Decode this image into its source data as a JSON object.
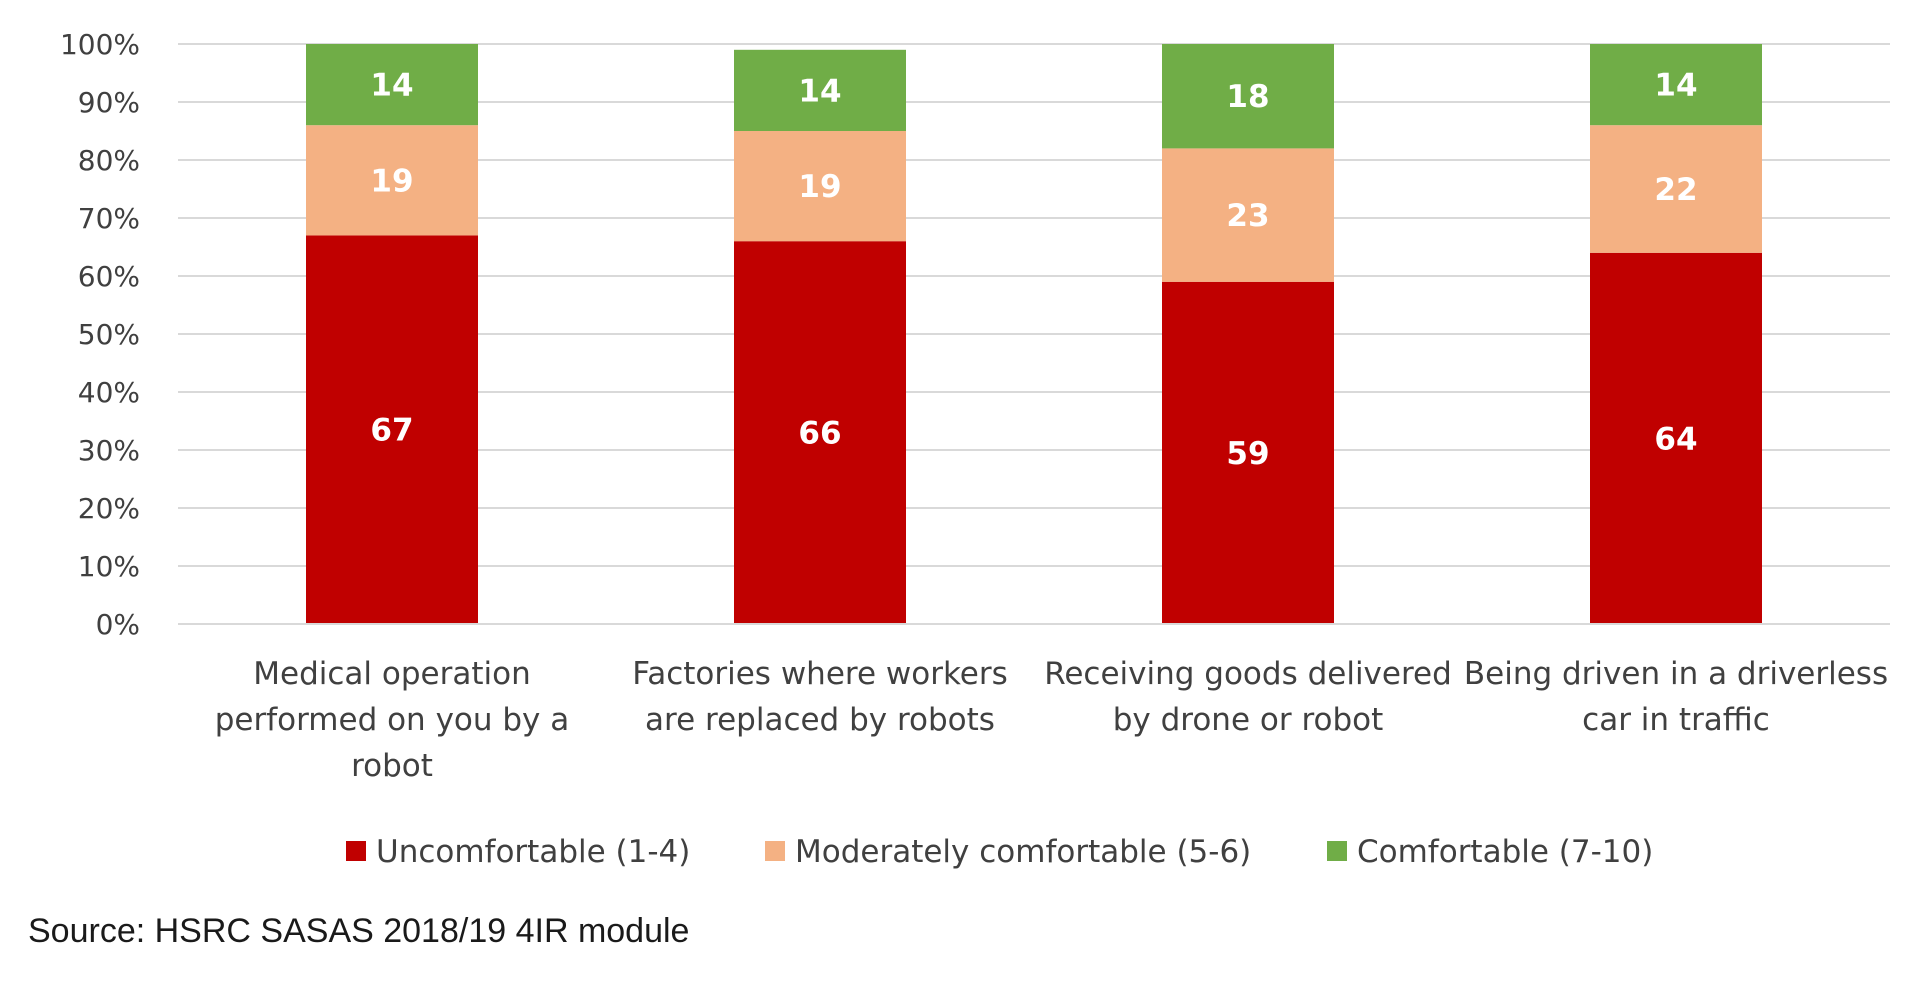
{
  "chart_data": {
    "type": "bar",
    "stacked": true,
    "title": "",
    "xlabel": "",
    "ylabel": "",
    "ylim": [
      0,
      100
    ],
    "y_ticks": [
      "0%",
      "10%",
      "20%",
      "30%",
      "40%",
      "50%",
      "60%",
      "70%",
      "80%",
      "90%",
      "100%"
    ],
    "grid": true,
    "legend_position": "bottom",
    "categories": [
      [
        "Medical operation",
        "performed on you by a",
        "robot"
      ],
      [
        "Factories where workers",
        "are replaced by robots"
      ],
      [
        "Receiving goods delivered",
        "by drone or robot"
      ],
      [
        "Being driven in a driverless",
        "car in traffic"
      ]
    ],
    "series": [
      {
        "name": "Uncomfortable (1-4)",
        "color": "#c00000",
        "label_color": "#ffffff",
        "values": [
          67,
          66,
          59,
          64
        ]
      },
      {
        "name": "Moderately comfortable (5-6)",
        "color": "#f4b183",
        "label_color": "#ffffff",
        "values": [
          19,
          19,
          23,
          22
        ]
      },
      {
        "name": "Comfortable (7-10)",
        "color": "#70ad47",
        "label_color": "#ffffff",
        "values": [
          14,
          14,
          18,
          14
        ]
      }
    ],
    "gridline_color": "#d9d9d9"
  },
  "source": "Source: HSRC SASAS 2018/19 4IR module"
}
